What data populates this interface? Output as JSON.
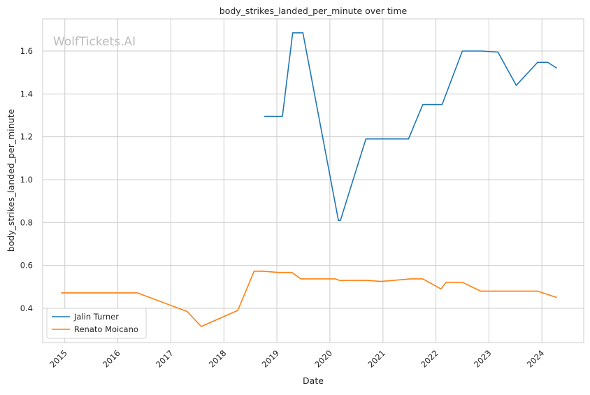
{
  "watermark": "WolfTickets.AI",
  "chart_data": {
    "type": "line",
    "title": "body_strikes_landed_per_minute over time",
    "xlabel": "Date",
    "ylabel": "body_strikes_landed_per_minute",
    "x_ticks": [
      "2015",
      "2016",
      "2017",
      "2018",
      "2019",
      "2020",
      "2021",
      "2022",
      "2023",
      "2024"
    ],
    "y_ticks": [
      "0.4",
      "0.6",
      "0.8",
      "1.0",
      "1.2",
      "1.4",
      "1.6"
    ],
    "xlim": [
      "2014-08-01",
      "2024-10-15"
    ],
    "ylim": [
      0.24,
      1.75
    ],
    "grid": true,
    "legend_position": "lower-left",
    "series": [
      {
        "name": "Jalin Turner",
        "color": "#1f77b4",
        "points": [
          [
            "2018-10-06",
            1.295
          ],
          [
            "2019-02-08",
            1.295
          ],
          [
            "2019-04-20",
            1.685
          ],
          [
            "2019-06-29",
            1.685
          ],
          [
            "2020-02-29",
            0.81
          ],
          [
            "2020-03-14",
            0.81
          ],
          [
            "2020-09-05",
            1.19
          ],
          [
            "2021-06-26",
            1.19
          ],
          [
            "2021-10-02",
            1.35
          ],
          [
            "2022-02-12",
            1.35
          ],
          [
            "2022-07-02",
            1.6
          ],
          [
            "2022-11-12",
            1.6
          ],
          [
            "2023-03-04",
            1.595
          ],
          [
            "2023-07-08",
            1.44
          ],
          [
            "2023-12-02",
            1.547
          ],
          [
            "2024-02-10",
            1.547
          ],
          [
            "2024-04-13",
            1.52
          ]
        ]
      },
      {
        "name": "Renato Moicano",
        "color": "#ff7f0e",
        "points": [
          [
            "2014-12-06",
            0.472
          ],
          [
            "2016-05-14",
            0.472
          ],
          [
            "2017-04-22",
            0.385
          ],
          [
            "2017-07-29",
            0.315
          ],
          [
            "2018-04-07",
            0.39
          ],
          [
            "2018-07-28",
            0.573
          ],
          [
            "2018-09-22",
            0.573
          ],
          [
            "2019-01-12",
            0.567
          ],
          [
            "2019-04-13",
            0.567
          ],
          [
            "2019-06-15",
            0.537
          ],
          [
            "2020-02-08",
            0.537
          ],
          [
            "2020-03-07",
            0.53
          ],
          [
            "2020-09-12",
            0.53
          ],
          [
            "2020-12-19",
            0.525
          ],
          [
            "2021-07-10",
            0.537
          ],
          [
            "2021-10-02",
            0.537
          ],
          [
            "2022-02-05",
            0.49
          ],
          [
            "2022-03-12",
            0.521
          ],
          [
            "2022-07-02",
            0.521
          ],
          [
            "2022-11-05",
            0.48
          ],
          [
            "2023-12-02",
            0.48
          ],
          [
            "2024-04-13",
            0.45
          ]
        ]
      }
    ]
  }
}
